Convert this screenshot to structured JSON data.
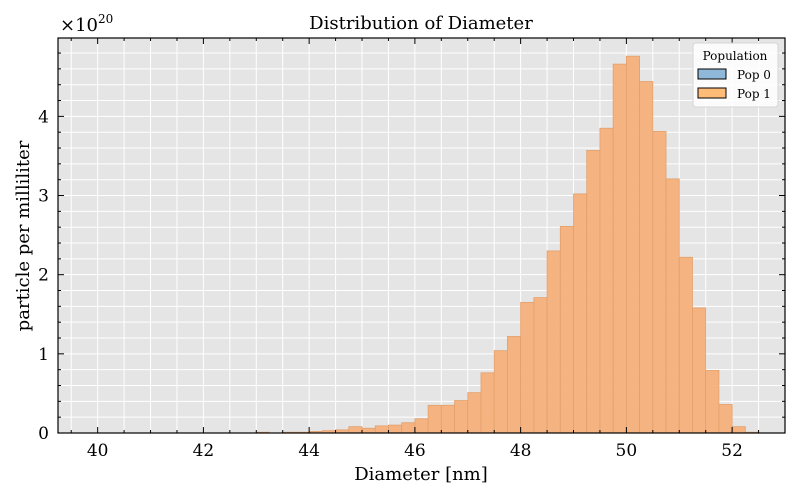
{
  "chart_data": {
    "type": "bar",
    "title": "Distribution of Diameter",
    "xlabel": "Diameter [nm]",
    "ylabel": "particle per milliliter",
    "y_scale_label": "×10",
    "y_scale_exponent": "20",
    "xlim": [
      39.25,
      53.0
    ],
    "ylim": [
      0,
      4.99
    ],
    "x_ticks": [
      40,
      42,
      44,
      46,
      48,
      50,
      52
    ],
    "x_tick_labels": [
      "40",
      "42",
      "44",
      "46",
      "48",
      "50",
      "52"
    ],
    "y_ticks": [
      0,
      1,
      2,
      3,
      4
    ],
    "y_tick_labels": [
      "0",
      "1",
      "2",
      "3",
      "4"
    ],
    "grid": true,
    "legend": {
      "title": "Population",
      "position": "upper right",
      "entries": [
        {
          "label": "Pop 0",
          "color": "#8fb8d9"
        },
        {
          "label": "Pop 1",
          "color": "#ffbb78"
        }
      ]
    },
    "bin_width": 0.25,
    "series": [
      {
        "name": "Pop 0",
        "color": "#1f77b4",
        "bin_edges_start": [],
        "values": []
      },
      {
        "name": "Pop 1",
        "color": "#f4b07a",
        "bin_edges_start": [
          43.0,
          43.25,
          43.5,
          43.75,
          44.0,
          44.25,
          44.5,
          44.75,
          45.0,
          45.25,
          45.5,
          45.75,
          46.0,
          46.25,
          46.5,
          46.75,
          47.0,
          47.25,
          47.5,
          47.75,
          48.0,
          48.25,
          48.5,
          48.75,
          49.0,
          49.25,
          49.5,
          49.75,
          50.0,
          50.25,
          50.5,
          50.75,
          51.0,
          51.25,
          51.5,
          51.75,
          52.0,
          52.25
        ],
        "values": [
          0.01,
          0.0,
          0.01,
          0.01,
          0.02,
          0.03,
          0.04,
          0.08,
          0.06,
          0.09,
          0.1,
          0.13,
          0.18,
          0.35,
          0.35,
          0.41,
          0.51,
          0.76,
          1.04,
          1.22,
          1.65,
          1.71,
          2.3,
          2.61,
          3.02,
          3.57,
          3.85,
          4.66,
          4.76,
          4.44,
          3.81,
          3.21,
          2.22,
          1.58,
          0.79,
          0.36,
          0.08,
          0.01
        ]
      }
    ]
  },
  "colors": {
    "plot_background": "#e5e5e5",
    "grid": "#ffffff",
    "bar_fill": "#f4b07a",
    "bar_edge": "#e3a06c",
    "axis": "#000000"
  }
}
